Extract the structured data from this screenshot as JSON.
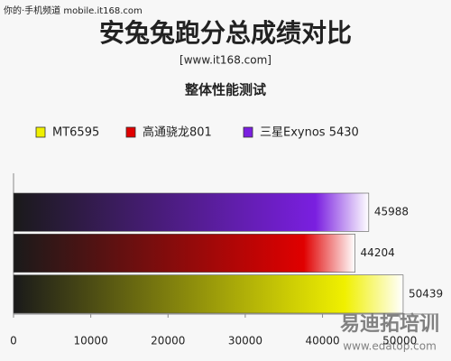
{
  "watermark_top": "你的·手机频道 mobile.it168.com",
  "watermark_bottom": [
    "易迪拓培训",
    "www.edatop.com"
  ],
  "chart_data": {
    "type": "bar",
    "orientation": "horizontal",
    "title": "安兔兔跑分总成绩对比",
    "subtitle": "[www.it168.com]",
    "chart_title": "整体性能测试",
    "series": [
      {
        "name": "MT6595",
        "color": "#f0f000",
        "values": [
          50439
        ]
      },
      {
        "name": "高通骁龙801",
        "color": "#e00000",
        "values": [
          44204
        ]
      },
      {
        "name": "三星Exynos 5430",
        "color": "#7a1fe0",
        "values": [
          45988
        ]
      }
    ],
    "xlim": [
      0,
      55000
    ],
    "xticks": [
      0,
      10000,
      20000,
      30000,
      40000,
      50000
    ],
    "legend": "top"
  }
}
